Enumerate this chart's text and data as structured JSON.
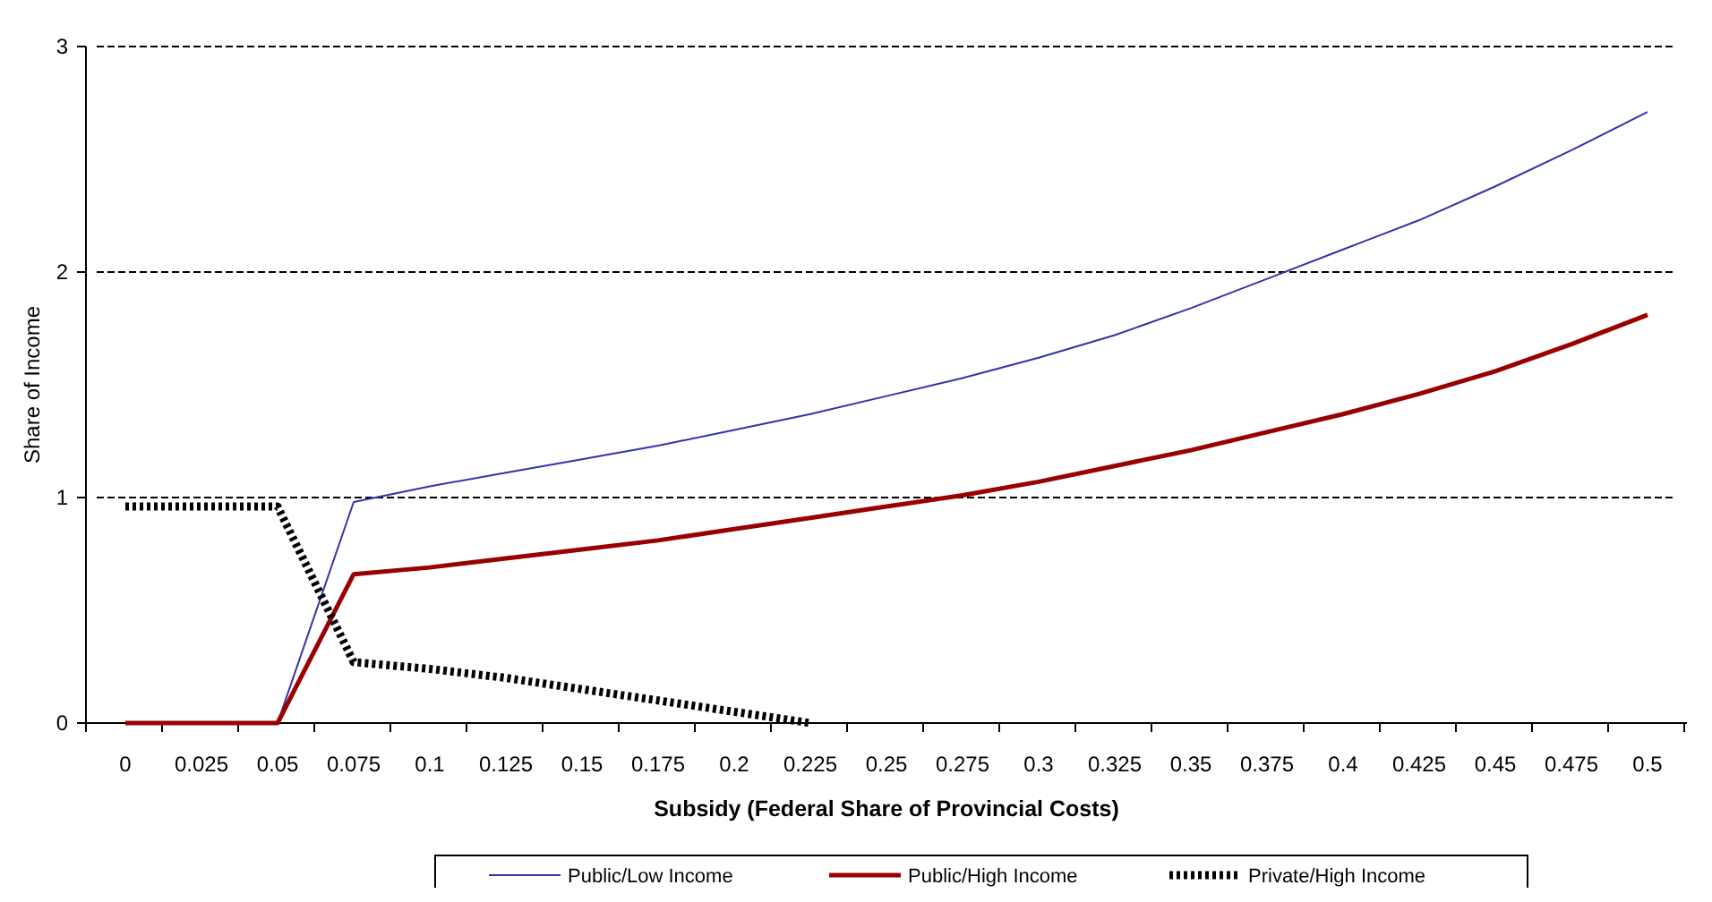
{
  "chart_data": {
    "type": "line",
    "xlabel": "Subsidy (Federal Share of Provincial Costs)",
    "ylabel": "Share of Income",
    "categories": [
      "0",
      "0.025",
      "0.05",
      "0.075",
      "0.1",
      "0.125",
      "0.15",
      "0.175",
      "0.2",
      "0.225",
      "0.25",
      "0.275",
      "0.3",
      "0.325",
      "0.35",
      "0.375",
      "0.4",
      "0.425",
      "0.45",
      "0.475",
      "0.5"
    ],
    "series": [
      {
        "name": "Public/Low Income",
        "color": "#3333aa",
        "values": [
          0,
          0,
          0,
          0.98,
          1.05,
          1.11,
          1.17,
          1.23,
          1.3,
          1.37,
          1.45,
          1.53,
          1.62,
          1.72,
          1.84,
          1.97,
          2.1,
          2.23,
          2.38,
          2.54,
          2.71
        ]
      },
      {
        "name": "Public/High Income",
        "color": "#990000",
        "values": [
          0,
          0,
          0,
          0.66,
          0.69,
          0.73,
          0.77,
          0.81,
          0.86,
          0.91,
          0.96,
          1.01,
          1.07,
          1.14,
          1.21,
          1.29,
          1.37,
          1.46,
          1.56,
          1.68,
          1.81
        ]
      },
      {
        "name": "Private/High Income",
        "color": "#000000",
        "line_style": "dotted",
        "values": [
          0.96,
          0.96,
          0.96,
          0.27,
          0.24,
          0.2,
          0.15,
          0.1,
          0.05,
          0,
          null,
          null,
          null,
          null,
          null,
          null,
          null,
          null,
          null,
          null,
          null
        ]
      }
    ],
    "ylim": [
      0,
      3
    ],
    "yticks": [
      0,
      1,
      2,
      3
    ],
    "grid": "y",
    "legend": "bottom",
    "marker": "none"
  }
}
